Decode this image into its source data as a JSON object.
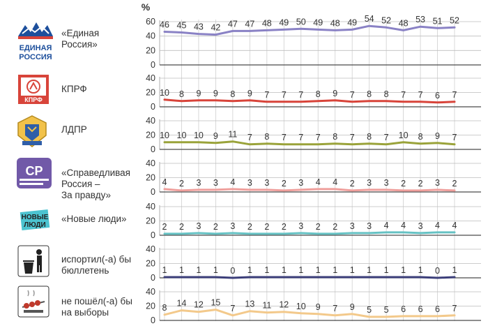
{
  "chart_data": {
    "type": "line",
    "unit": "%",
    "ylim_top": [
      0,
      60
    ],
    "ylim_rest": [
      0,
      40
    ],
    "yticks_top": [
      "60",
      "40",
      "20",
      "0"
    ],
    "yticks_rest": [
      "40",
      "20",
      "0"
    ],
    "points": 18,
    "series": [
      {
        "name": "«Единая Россия»",
        "lines": [
          "«Единая",
          "Россия»"
        ],
        "logo": "united-russia-logo",
        "color": "#8a82c5",
        "values": [
          46,
          45,
          43,
          42,
          47,
          47,
          48,
          49,
          50,
          49,
          48,
          49,
          54,
          52,
          48,
          53,
          51,
          52
        ]
      },
      {
        "name": "КПРФ",
        "lines": [
          "КПРФ"
        ],
        "logo": "kprf-logo",
        "color": "#d8443a",
        "values": [
          10,
          8,
          9,
          9,
          8,
          9,
          7,
          7,
          7,
          8,
          9,
          7,
          8,
          8,
          7,
          7,
          6,
          7
        ]
      },
      {
        "name": "ЛДПР",
        "lines": [
          "ЛДПР"
        ],
        "logo": "ldpr-logo",
        "color": "#9aa33a",
        "values": [
          10,
          10,
          10,
          9,
          11,
          7,
          8,
          7,
          7,
          7,
          8,
          7,
          8,
          7,
          10,
          8,
          9,
          7
        ]
      },
      {
        "name": "«Справедливая Россия – За правду»",
        "lines": [
          "«Справедливая",
          "Россия –",
          "За правду»"
        ],
        "logo": "sr-logo",
        "color": "#ef9f9c",
        "values": [
          4,
          2,
          3,
          3,
          4,
          3,
          3,
          2,
          3,
          4,
          4,
          2,
          3,
          3,
          2,
          2,
          3,
          2
        ]
      },
      {
        "name": "«Новые люди»",
        "lines": [
          "«Новые люди»"
        ],
        "logo": "new-people-logo",
        "color": "#66c2c4",
        "values": [
          2,
          2,
          3,
          2,
          3,
          2,
          2,
          2,
          3,
          2,
          2,
          3,
          3,
          4,
          4,
          3,
          4,
          4
        ]
      },
      {
        "name": "испортил(-а) бы бюллетень",
        "lines": [
          "испортил(-а) бы",
          "бюллетень"
        ],
        "logo": "trash-bin-icon",
        "color": "#3c3f7a",
        "values": [
          1,
          1,
          1,
          1,
          0,
          1,
          1,
          1,
          1,
          1,
          1,
          1,
          1,
          1,
          1,
          1,
          0,
          1
        ]
      },
      {
        "name": "не пошёл(-а) бы на выборы",
        "lines": [
          "не пошёл(-а) бы",
          "на выборы"
        ],
        "logo": "barbecue-icon",
        "color": "#f3c98b",
        "values": [
          8,
          14,
          12,
          15,
          7,
          13,
          11,
          12,
          10,
          9,
          7,
          9,
          5,
          5,
          6,
          6,
          6,
          7
        ]
      }
    ]
  }
}
